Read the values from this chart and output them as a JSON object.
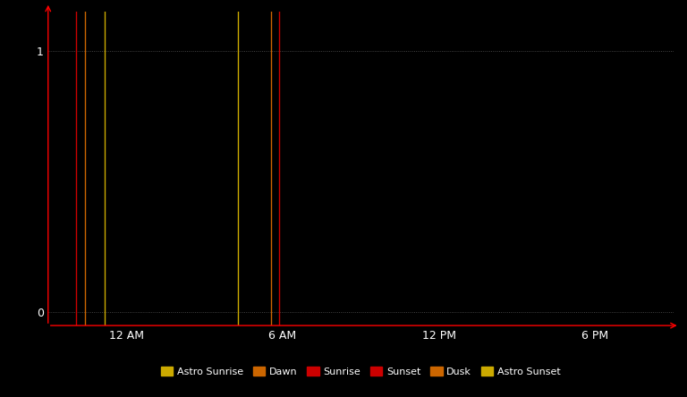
{
  "background_color": "#000000",
  "text_color": "#ffffff",
  "fig_width": 7.68,
  "fig_height": 4.44,
  "dpi": 100,
  "ylim": [
    -0.05,
    1.15
  ],
  "yticks": [
    0,
    1
  ],
  "xlim": [
    -3.0,
    21.0
  ],
  "xtick_positions": [
    0,
    6,
    12,
    18
  ],
  "xtick_labels": [
    "12 AM",
    "6 AM",
    "12 PM",
    "6 PM"
  ],
  "vertical_lines": [
    {
      "x": -1.93,
      "color": "#cc0000",
      "label": "Sunrise"
    },
    {
      "x": -1.57,
      "color": "#cc6600",
      "label": "Dawn"
    },
    {
      "x": -0.82,
      "color": "#ccaa00",
      "label": "Astro Sunrise"
    },
    {
      "x": 4.29,
      "color": "#ccaa00",
      "label": "Astro Sunset"
    },
    {
      "x": 5.57,
      "color": "#cc6600",
      "label": "Dusk"
    },
    {
      "x": 5.86,
      "color": "#cc0000",
      "label": "Sunset"
    }
  ],
  "legend_items": [
    {
      "label": "Astro Sunrise",
      "color": "#ccaa00"
    },
    {
      "label": "Dawn",
      "color": "#cc6600"
    },
    {
      "label": "Sunrise",
      "color": "#cc0000"
    },
    {
      "label": "Sunset",
      "color": "#cc0000"
    },
    {
      "label": "Dusk",
      "color": "#cc6600"
    },
    {
      "label": "Astro Sunset",
      "color": "#ccaa00"
    }
  ],
  "grid_color": "#555555",
  "spine_color": "#000000",
  "tick_fontsize": 9,
  "legend_fontsize": 8
}
